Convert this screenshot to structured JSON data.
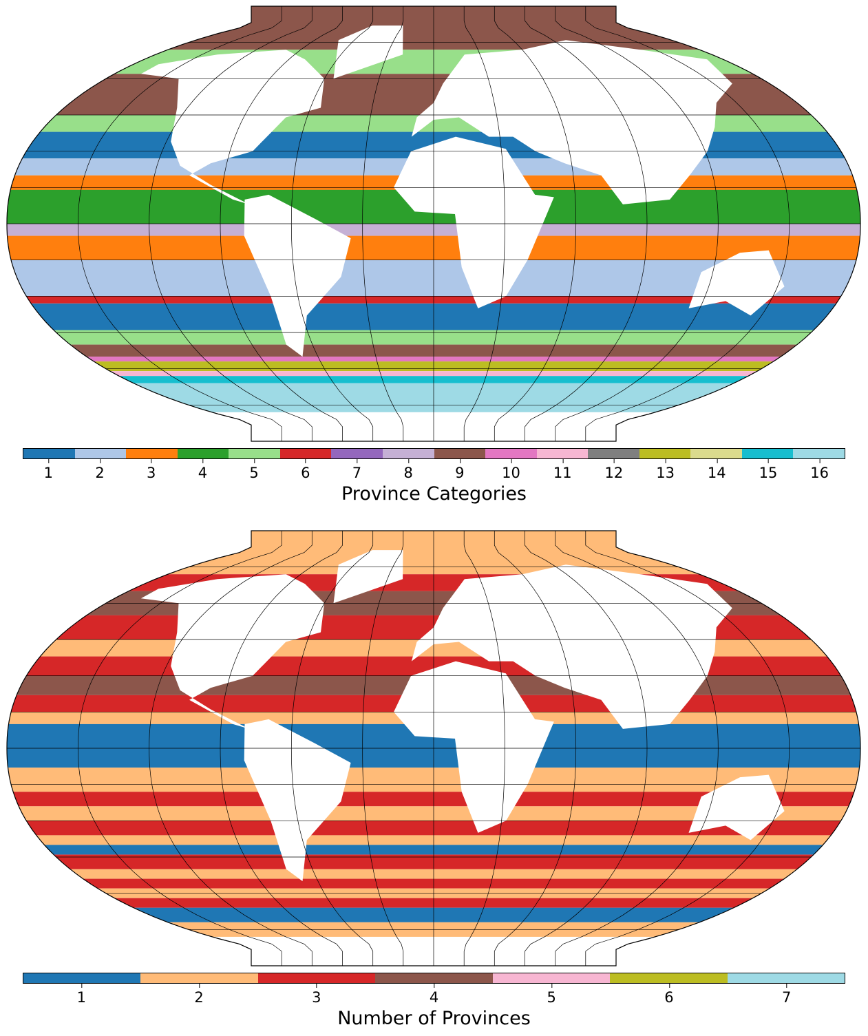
{
  "maps": [
    {
      "id": "top",
      "projection": "robinson",
      "gridlines": true,
      "background_land": "#ffffff",
      "colorbar": {
        "label": "Province Categories",
        "ticks": [
          "1",
          "2",
          "3",
          "4",
          "5",
          "6",
          "7",
          "8",
          "9",
          "10",
          "11",
          "12",
          "13",
          "14",
          "15",
          "16"
        ],
        "colors": [
          "#1f77b4",
          "#aec7e8",
          "#ff7f0e",
          "#2ca02c",
          "#98df8a",
          "#d62728",
          "#9467bd",
          "#c5b0d5",
          "#8c564b",
          "#e377c2",
          "#f7b6d2",
          "#7f7f7f",
          "#bcbd22",
          "#dbdb8d",
          "#17becf",
          "#9edae5"
        ]
      },
      "bands": [
        {
          "lat_top": 90,
          "lat_bottom": 72,
          "category": 9
        },
        {
          "lat_top": 72,
          "lat_bottom": 62,
          "category": 5
        },
        {
          "lat_top": 62,
          "lat_bottom": 45,
          "category": 9
        },
        {
          "lat_top": 45,
          "lat_bottom": 38,
          "category": 5
        },
        {
          "lat_top": 38,
          "lat_bottom": 27,
          "category": 1
        },
        {
          "lat_top": 27,
          "lat_bottom": 20,
          "category": 2
        },
        {
          "lat_top": 20,
          "lat_bottom": 14,
          "category": 3
        },
        {
          "lat_top": 14,
          "lat_bottom": 0,
          "category": 4
        },
        {
          "lat_top": 0,
          "lat_bottom": -5,
          "category": 8
        },
        {
          "lat_top": -5,
          "lat_bottom": -15,
          "category": 3
        },
        {
          "lat_top": -15,
          "lat_bottom": -30,
          "category": 2
        },
        {
          "lat_top": -30,
          "lat_bottom": -33,
          "category": 6
        },
        {
          "lat_top": -33,
          "lat_bottom": -44,
          "category": 1
        },
        {
          "lat_top": -44,
          "lat_bottom": -50,
          "category": 5
        },
        {
          "lat_top": -50,
          "lat_bottom": -55,
          "category": 9
        },
        {
          "lat_top": -55,
          "lat_bottom": -57,
          "category": 10
        },
        {
          "lat_top": -57,
          "lat_bottom": -61,
          "category": 13
        },
        {
          "lat_top": -61,
          "lat_bottom": -63,
          "category": 11
        },
        {
          "lat_top": -63,
          "lat_bottom": -66,
          "category": 15
        },
        {
          "lat_top": -66,
          "lat_bottom": -78,
          "category": 16
        }
      ]
    },
    {
      "id": "bottom",
      "projection": "robinson",
      "gridlines": true,
      "background_land": "#ffffff",
      "colorbar": {
        "label": "Number of Provinces",
        "ticks": [
          "1",
          "2",
          "3",
          "4",
          "5",
          "6",
          "7"
        ],
        "colors": [
          "#1f77b4",
          "#ffbb78",
          "#d62728",
          "#8c564b",
          "#f7b6d2",
          "#bcbd22",
          "#9edae5"
        ]
      },
      "bands": [
        {
          "lat_top": 90,
          "lat_bottom": 72,
          "category": 2
        },
        {
          "lat_top": 72,
          "lat_bottom": 65,
          "category": 3
        },
        {
          "lat_top": 65,
          "lat_bottom": 55,
          "category": 4
        },
        {
          "lat_top": 55,
          "lat_bottom": 45,
          "category": 3
        },
        {
          "lat_top": 45,
          "lat_bottom": 38,
          "category": 2
        },
        {
          "lat_top": 38,
          "lat_bottom": 30,
          "category": 3
        },
        {
          "lat_top": 30,
          "lat_bottom": 22,
          "category": 4
        },
        {
          "lat_top": 22,
          "lat_bottom": 15,
          "category": 3
        },
        {
          "lat_top": 15,
          "lat_bottom": 10,
          "category": 2
        },
        {
          "lat_top": 10,
          "lat_bottom": -8,
          "category": 1
        },
        {
          "lat_top": -8,
          "lat_bottom": -18,
          "category": 2
        },
        {
          "lat_top": -18,
          "lat_bottom": -24,
          "category": 3
        },
        {
          "lat_top": -24,
          "lat_bottom": -30,
          "category": 2
        },
        {
          "lat_top": -30,
          "lat_bottom": -36,
          "category": 3
        },
        {
          "lat_top": -36,
          "lat_bottom": -40,
          "category": 2
        },
        {
          "lat_top": -40,
          "lat_bottom": -44,
          "category": 1
        },
        {
          "lat_top": -44,
          "lat_bottom": -50,
          "category": 3
        },
        {
          "lat_top": -50,
          "lat_bottom": -54,
          "category": 2
        },
        {
          "lat_top": -54,
          "lat_bottom": -58,
          "category": 3
        },
        {
          "lat_top": -58,
          "lat_bottom": -62,
          "category": 2
        },
        {
          "lat_top": -62,
          "lat_bottom": -66,
          "category": 3
        },
        {
          "lat_top": -66,
          "lat_bottom": -72,
          "category": 1
        },
        {
          "lat_top": -72,
          "lat_bottom": -78,
          "category": 2
        }
      ]
    }
  ]
}
